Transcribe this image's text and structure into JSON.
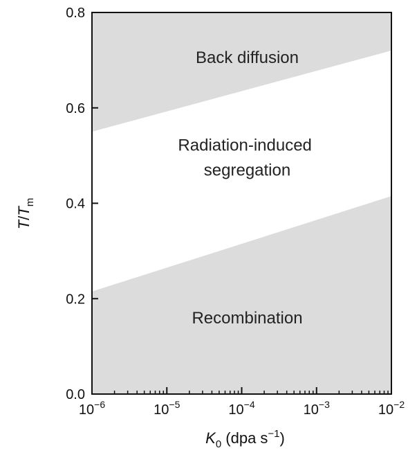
{
  "chart_data": {
    "type": "area",
    "xlabel": {
      "symbol": "K",
      "sub": "0",
      "units_pre": " (dpa s",
      "units_sup": "−1",
      "units_post": ")"
    },
    "ylabel": {
      "italic1": "T",
      "slash": "/",
      "italic2": "T",
      "sub": "m"
    },
    "x_scale": "log",
    "xlim": [
      1e-06,
      0.01
    ],
    "ylim": [
      0.0,
      0.8
    ],
    "x_ticks": [
      {
        "value": 1e-06,
        "base": "10",
        "exp": "−6"
      },
      {
        "value": 1e-05,
        "base": "10",
        "exp": "−5"
      },
      {
        "value": 0.0001,
        "base": "10",
        "exp": "−4"
      },
      {
        "value": 0.001,
        "base": "10",
        "exp": "−3"
      },
      {
        "value": 0.01,
        "base": "10",
        "exp": "−2"
      }
    ],
    "y_ticks": [
      {
        "value": 0.0,
        "label": "0.0"
      },
      {
        "value": 0.2,
        "label": "0.2"
      },
      {
        "value": 0.4,
        "label": "0.4"
      },
      {
        "value": 0.6,
        "label": "0.6"
      },
      {
        "value": 0.8,
        "label": "0.8"
      }
    ],
    "boundaries": [
      {
        "name": "upper",
        "x": [
          1e-06,
          0.01
        ],
        "y": [
          0.55,
          0.72
        ]
      },
      {
        "name": "lower",
        "x": [
          1e-06,
          0.01
        ],
        "y": [
          0.215,
          0.415
        ]
      }
    ],
    "regions": [
      {
        "name": "back-diffusion",
        "lines": [
          "Back diffusion"
        ],
        "color": "#dcdcdd"
      },
      {
        "name": "radiation-induced-segregation",
        "lines": [
          "Radiation-induced",
          "segregation"
        ],
        "color": "#ffffff"
      },
      {
        "name": "recombination",
        "lines": [
          "Recombination"
        ],
        "color": "#dcdcdd"
      }
    ],
    "grid": false
  }
}
